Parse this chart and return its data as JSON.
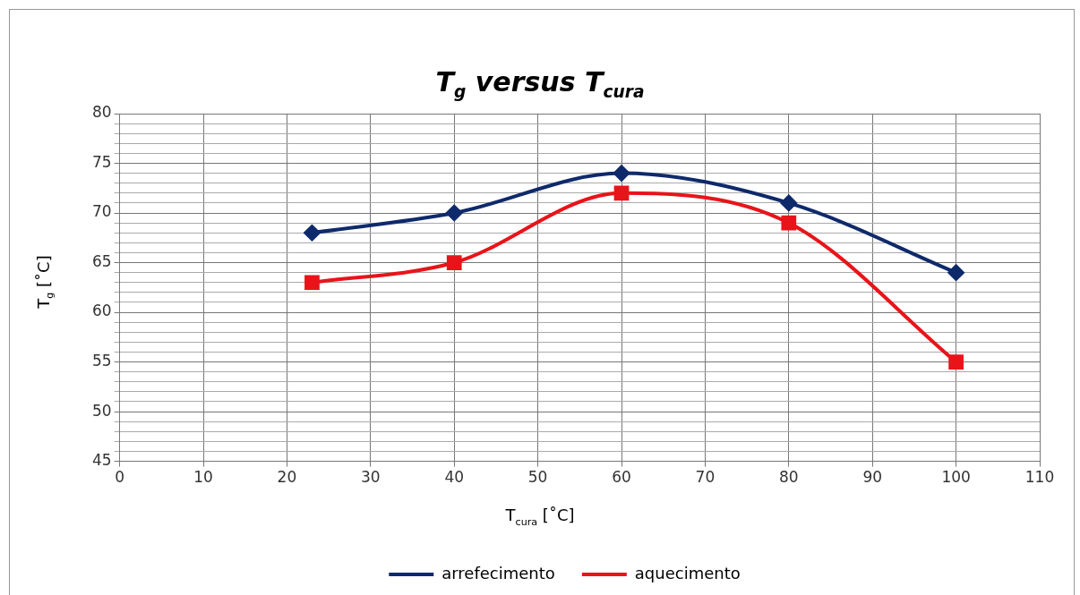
{
  "chart_data": {
    "type": "line",
    "title": "T$_{g}$ versus T$_{cura}$",
    "xlabel": "T$_{cura}$ [˚C]",
    "ylabel": "T$_{g}$ [˚C]",
    "xlim": [
      0,
      110
    ],
    "xticks": [
      0,
      10,
      20,
      30,
      40,
      50,
      60,
      70,
      80,
      90,
      100,
      110
    ],
    "ylim": [
      45,
      80
    ],
    "yticks": [
      45,
      {
        "value": 46,
        "label": null
      },
      {
        "value": 47,
        "label": null
      },
      {
        "value": 48,
        "label": null
      },
      {
        "value": 49,
        "label": null
      },
      50,
      {
        "value": 51,
        "label": null
      },
      {
        "value": 52,
        "label": null
      },
      {
        "value": 53,
        "label": null
      },
      {
        "value": 54,
        "label": null
      },
      55,
      {
        "value": 56,
        "label": null
      },
      {
        "value": 57,
        "label": null
      },
      {
        "value": 58,
        "label": null
      },
      {
        "value": 59,
        "label": null
      },
      60,
      {
        "value": 61,
        "label": null
      },
      {
        "value": 62,
        "label": null
      },
      {
        "value": 63,
        "label": null
      },
      {
        "value": 64,
        "label": null
      },
      65,
      {
        "value": 66,
        "label": null
      },
      {
        "value": 67,
        "label": null
      },
      {
        "value": 68,
        "label": null
      },
      {
        "value": 69,
        "label": null
      },
      70,
      {
        "value": 71,
        "label": null
      },
      {
        "value": 72,
        "label": null
      },
      {
        "value": 73,
        "label": null
      },
      {
        "value": 74,
        "label": null
      },
      75,
      {
        "value": 76,
        "label": null
      },
      {
        "value": 77,
        "label": null
      },
      {
        "value": 78,
        "label": null
      },
      {
        "value": 79,
        "label": null
      },
      80
    ],
    "grid": true,
    "legend": "bottom",
    "line_style": "solid",
    "series": [
      {
        "name": "arrefecimento",
        "color": "#0f2a6b",
        "marker": "diamond",
        "x": [
          23,
          40,
          60,
          80,
          100
        ],
        "values": [
          68,
          70,
          74,
          71,
          64
        ]
      },
      {
        "name": "aquecimento",
        "color": "#e8141a",
        "marker": "square",
        "x": [
          23,
          40,
          60,
          80,
          100
        ],
        "values": [
          63,
          65,
          72,
          69,
          55
        ]
      }
    ]
  }
}
